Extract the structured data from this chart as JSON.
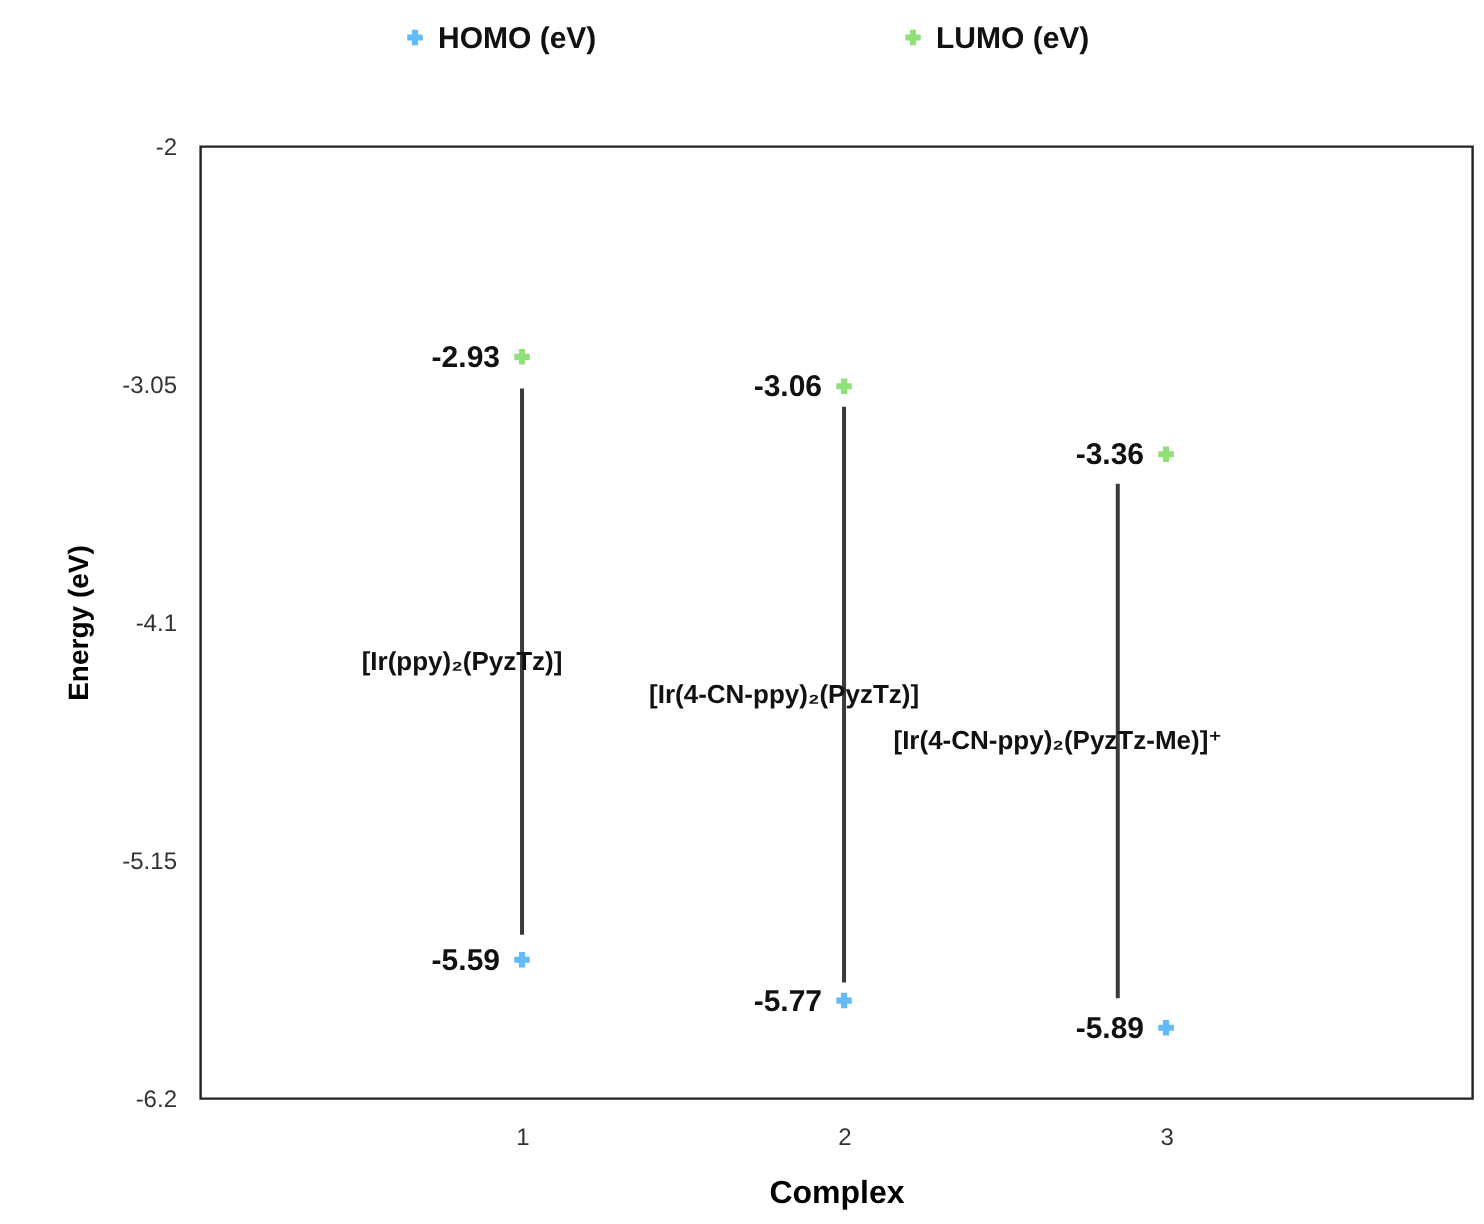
{
  "chart_data": {
    "type": "scatter",
    "xlabel": "Complex",
    "ylabel": "Energy (eV)",
    "xlim": [
      0,
      3.95
    ],
    "xticks": [
      1,
      2,
      3
    ],
    "ylim": [
      -6.2,
      -2
    ],
    "yticks": [
      -2,
      -3.05,
      -4.1,
      -5.15,
      -6.2
    ],
    "series": [
      {
        "name": "HOMO (eV)",
        "color": "#1e9ef5",
        "x": [
          1,
          2,
          3
        ],
        "values": [
          -5.59,
          -5.77,
          -5.89
        ],
        "value_labels": [
          "-5.59",
          "-5.77",
          "-5.89"
        ]
      },
      {
        "name": "LUMO (eV)",
        "color": "#5fd33f",
        "x": [
          1,
          2,
          3
        ],
        "values": [
          -2.93,
          -3.06,
          -3.36
        ],
        "value_labels": [
          "-2.93",
          "-3.06",
          "-3.36"
        ]
      },
      {
        "type": "bar",
        "color": "#3a3a3a",
        "x": [
          1,
          2,
          2.85
        ],
        "base": [
          -5.48,
          -5.69,
          -5.76
        ],
        "values": [
          2.41,
          2.54,
          2.27
        ]
      }
    ],
    "annotations": [
      "[Ir(ppy)₂(PyzTz)]",
      "[Ir(4-CN-ppy)₂(PyzTz)]",
      "[Ir(4-CN-ppy)₂(PyzTz-Me)]⁺"
    ],
    "legend": "top",
    "marker": "cross",
    "grid": false
  }
}
